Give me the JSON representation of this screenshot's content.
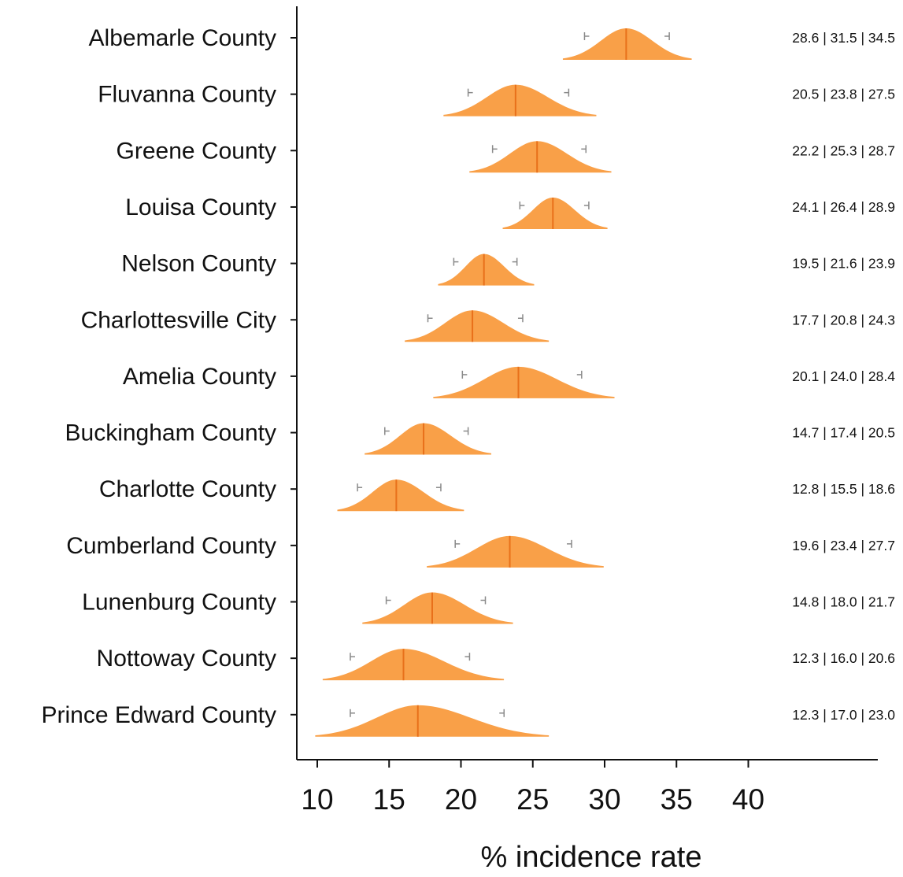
{
  "chart_data": {
    "type": "ridgeline-interval",
    "xlabel": "% incidence rate",
    "ylabel": "",
    "xlim": [
      10,
      40
    ],
    "xticks": [
      10,
      15,
      20,
      25,
      30,
      35,
      40
    ],
    "grid": false,
    "legend": "none",
    "color": "#F99B3E",
    "median_line_color": "#E8701A",
    "whisker_color": "#8a8a8a",
    "categories": [
      "Albemarle County",
      "Fluvanna County",
      "Greene County",
      "Louisa County",
      "Nelson County",
      "Charlottesville City",
      "Amelia County",
      "Buckingham County",
      "Charlotte County",
      "Cumberland County",
      "Lunenburg County",
      "Nottoway County",
      "Prince Edward County"
    ],
    "series": [
      {
        "low": 28.6,
        "median": 31.5,
        "high": 34.5,
        "label": "28.6 | 31.5 | 34.5"
      },
      {
        "low": 20.5,
        "median": 23.8,
        "high": 27.5,
        "label": "20.5 | 23.8 | 27.5"
      },
      {
        "low": 22.2,
        "median": 25.3,
        "high": 28.7,
        "label": "22.2 | 25.3 | 28.7"
      },
      {
        "low": 24.1,
        "median": 26.4,
        "high": 28.9,
        "label": "24.1 | 26.4 | 28.9"
      },
      {
        "low": 19.5,
        "median": 21.6,
        "high": 23.9,
        "label": "19.5 | 21.6 | 23.9"
      },
      {
        "low": 17.7,
        "median": 20.8,
        "high": 24.3,
        "label": "17.7 | 20.8 | 24.3"
      },
      {
        "low": 20.1,
        "median": 24.0,
        "high": 28.4,
        "label": "20.1 | 24.0 | 28.4"
      },
      {
        "low": 14.7,
        "median": 17.4,
        "high": 20.5,
        "label": "14.7 | 17.4 | 20.5"
      },
      {
        "low": 12.8,
        "median": 15.5,
        "high": 18.6,
        "label": "12.8 | 15.5 | 18.6"
      },
      {
        "low": 19.6,
        "median": 23.4,
        "high": 27.7,
        "label": "19.6 | 23.4 | 27.7"
      },
      {
        "low": 14.8,
        "median": 18.0,
        "high": 21.7,
        "label": "14.8 | 18.0 | 21.7"
      },
      {
        "low": 12.3,
        "median": 16.0,
        "high": 20.6,
        "label": "12.3 | 16.0 | 20.6"
      },
      {
        "low": 12.3,
        "median": 17.0,
        "high": 23.0,
        "label": "12.3 | 17.0 | 23.0"
      }
    ]
  }
}
